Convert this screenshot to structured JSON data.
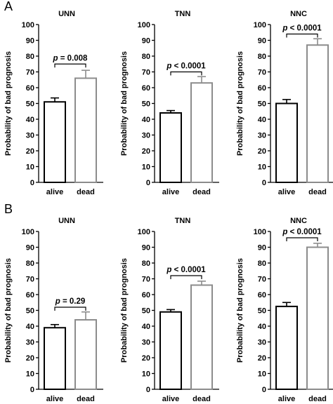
{
  "panels": [
    {
      "label": "A",
      "charts": [
        {
          "type": "bar",
          "title": "UNN",
          "ylabel": "Probability of bad prognosis",
          "categories": [
            "alive",
            "dead"
          ],
          "values": [
            51,
            66
          ],
          "errors": [
            2.5,
            5
          ],
          "bar_colors": [
            "#000000",
            "#8c8c8c"
          ],
          "ylim": [
            0,
            100
          ],
          "yticks": [
            "0",
            "10",
            "20",
            "30",
            "40",
            "50",
            "60",
            "70",
            "80",
            "90",
            "100"
          ],
          "annotation": {
            "p_label": "p",
            "p_rest": " = 0.008",
            "bracket_y": 75
          }
        },
        {
          "type": "bar",
          "title": "TNN",
          "ylabel": "Probability of bad prognosis",
          "categories": [
            "alive",
            "dead"
          ],
          "values": [
            44,
            63
          ],
          "errors": [
            1.5,
            4
          ],
          "bar_colors": [
            "#000000",
            "#8c8c8c"
          ],
          "ylim": [
            0,
            100
          ],
          "yticks": [
            "0",
            "10",
            "20",
            "30",
            "40",
            "50",
            "60",
            "70",
            "80",
            "90",
            "100"
          ],
          "annotation": {
            "p_label": "p",
            "p_rest": " < 0.0001",
            "bracket_y": 70
          }
        },
        {
          "type": "bar",
          "title": "NNC",
          "ylabel": "Probability of bad prognosis",
          "categories": [
            "alive",
            "dead"
          ],
          "values": [
            50,
            87
          ],
          "errors": [
            2.5,
            4
          ],
          "bar_colors": [
            "#000000",
            "#8c8c8c"
          ],
          "ylim": [
            0,
            100
          ],
          "yticks": [
            "0",
            "10",
            "20",
            "30",
            "40",
            "50",
            "60",
            "70",
            "80",
            "90",
            "100"
          ],
          "annotation": {
            "p_label": "p",
            "p_rest": " < 0.0001",
            "bracket_y": 94
          }
        }
      ]
    },
    {
      "label": "B",
      "charts": [
        {
          "type": "bar",
          "title": "UNN",
          "ylabel": "Probability of bad prognosis",
          "categories": [
            "alive",
            "dead"
          ],
          "values": [
            39,
            44
          ],
          "errors": [
            2,
            5
          ],
          "bar_colors": [
            "#000000",
            "#8c8c8c"
          ],
          "ylim": [
            0,
            100
          ],
          "yticks": [
            "0",
            "10",
            "20",
            "30",
            "40",
            "50",
            "60",
            "70",
            "80",
            "90",
            "100"
          ],
          "annotation": {
            "p_label": "p",
            "p_rest": " = 0.29",
            "bracket_y": 52
          }
        },
        {
          "type": "bar",
          "title": "TNN",
          "ylabel": "Probability of bad prognosis",
          "categories": [
            "alive",
            "dead"
          ],
          "values": [
            49,
            66
          ],
          "errors": [
            1.5,
            2.5
          ],
          "bar_colors": [
            "#000000",
            "#8c8c8c"
          ],
          "ylim": [
            0,
            100
          ],
          "yticks": [
            "0",
            "10",
            "20",
            "30",
            "40",
            "50",
            "60",
            "70",
            "80",
            "90",
            "100"
          ],
          "annotation": {
            "p_label": "p",
            "p_rest": " < 0.0001",
            "bracket_y": 72
          }
        },
        {
          "type": "bar",
          "title": "NNC",
          "ylabel": "Probability of bad prognosis",
          "categories": [
            "alive",
            "dead"
          ],
          "values": [
            52.5,
            90
          ],
          "errors": [
            2.5,
            2.5
          ],
          "bar_colors": [
            "#000000",
            "#8c8c8c"
          ],
          "ylim": [
            0,
            100
          ],
          "yticks": [
            "0",
            "10",
            "20",
            "30",
            "40",
            "50",
            "60",
            "70",
            "80",
            "90",
            "100"
          ],
          "annotation": {
            "p_label": "p",
            "p_rest": " < 0.0001",
            "bracket_y": 96
          }
        }
      ]
    }
  ],
  "chart_data": [
    {
      "type": "bar",
      "title": "UNN",
      "ylabel": "Probability of bad prognosis",
      "categories": [
        "alive",
        "dead"
      ],
      "values": [
        51,
        66
      ],
      "errors": [
        2.5,
        5
      ],
      "ylim": [
        0,
        100
      ],
      "annotation": "p = 0.008"
    },
    {
      "type": "bar",
      "title": "TNN",
      "ylabel": "Probability of bad prognosis",
      "categories": [
        "alive",
        "dead"
      ],
      "values": [
        44,
        63
      ],
      "errors": [
        1.5,
        4
      ],
      "ylim": [
        0,
        100
      ],
      "annotation": "p < 0.0001"
    },
    {
      "type": "bar",
      "title": "NNC",
      "ylabel": "Probability of bad prognosis",
      "categories": [
        "alive",
        "dead"
      ],
      "values": [
        50,
        87
      ],
      "errors": [
        2.5,
        4
      ],
      "ylim": [
        0,
        100
      ],
      "annotation": "p < 0.0001"
    },
    {
      "type": "bar",
      "title": "UNN",
      "ylabel": "Probability of bad prognosis",
      "categories": [
        "alive",
        "dead"
      ],
      "values": [
        39,
        44
      ],
      "errors": [
        2,
        5
      ],
      "ylim": [
        0,
        100
      ],
      "annotation": "p = 0.29"
    },
    {
      "type": "bar",
      "title": "TNN",
      "ylabel": "Probability of bad prognosis",
      "categories": [
        "alive",
        "dead"
      ],
      "values": [
        49,
        66
      ],
      "errors": [
        1.5,
        2.5
      ],
      "ylim": [
        0,
        100
      ],
      "annotation": "p < 0.0001"
    },
    {
      "type": "bar",
      "title": "NNC",
      "ylabel": "Probability of bad prognosis",
      "categories": [
        "alive",
        "dead"
      ],
      "values": [
        52.5,
        90
      ],
      "errors": [
        2.5,
        2.5
      ],
      "ylim": [
        0,
        100
      ],
      "annotation": "p < 0.0001"
    }
  ]
}
